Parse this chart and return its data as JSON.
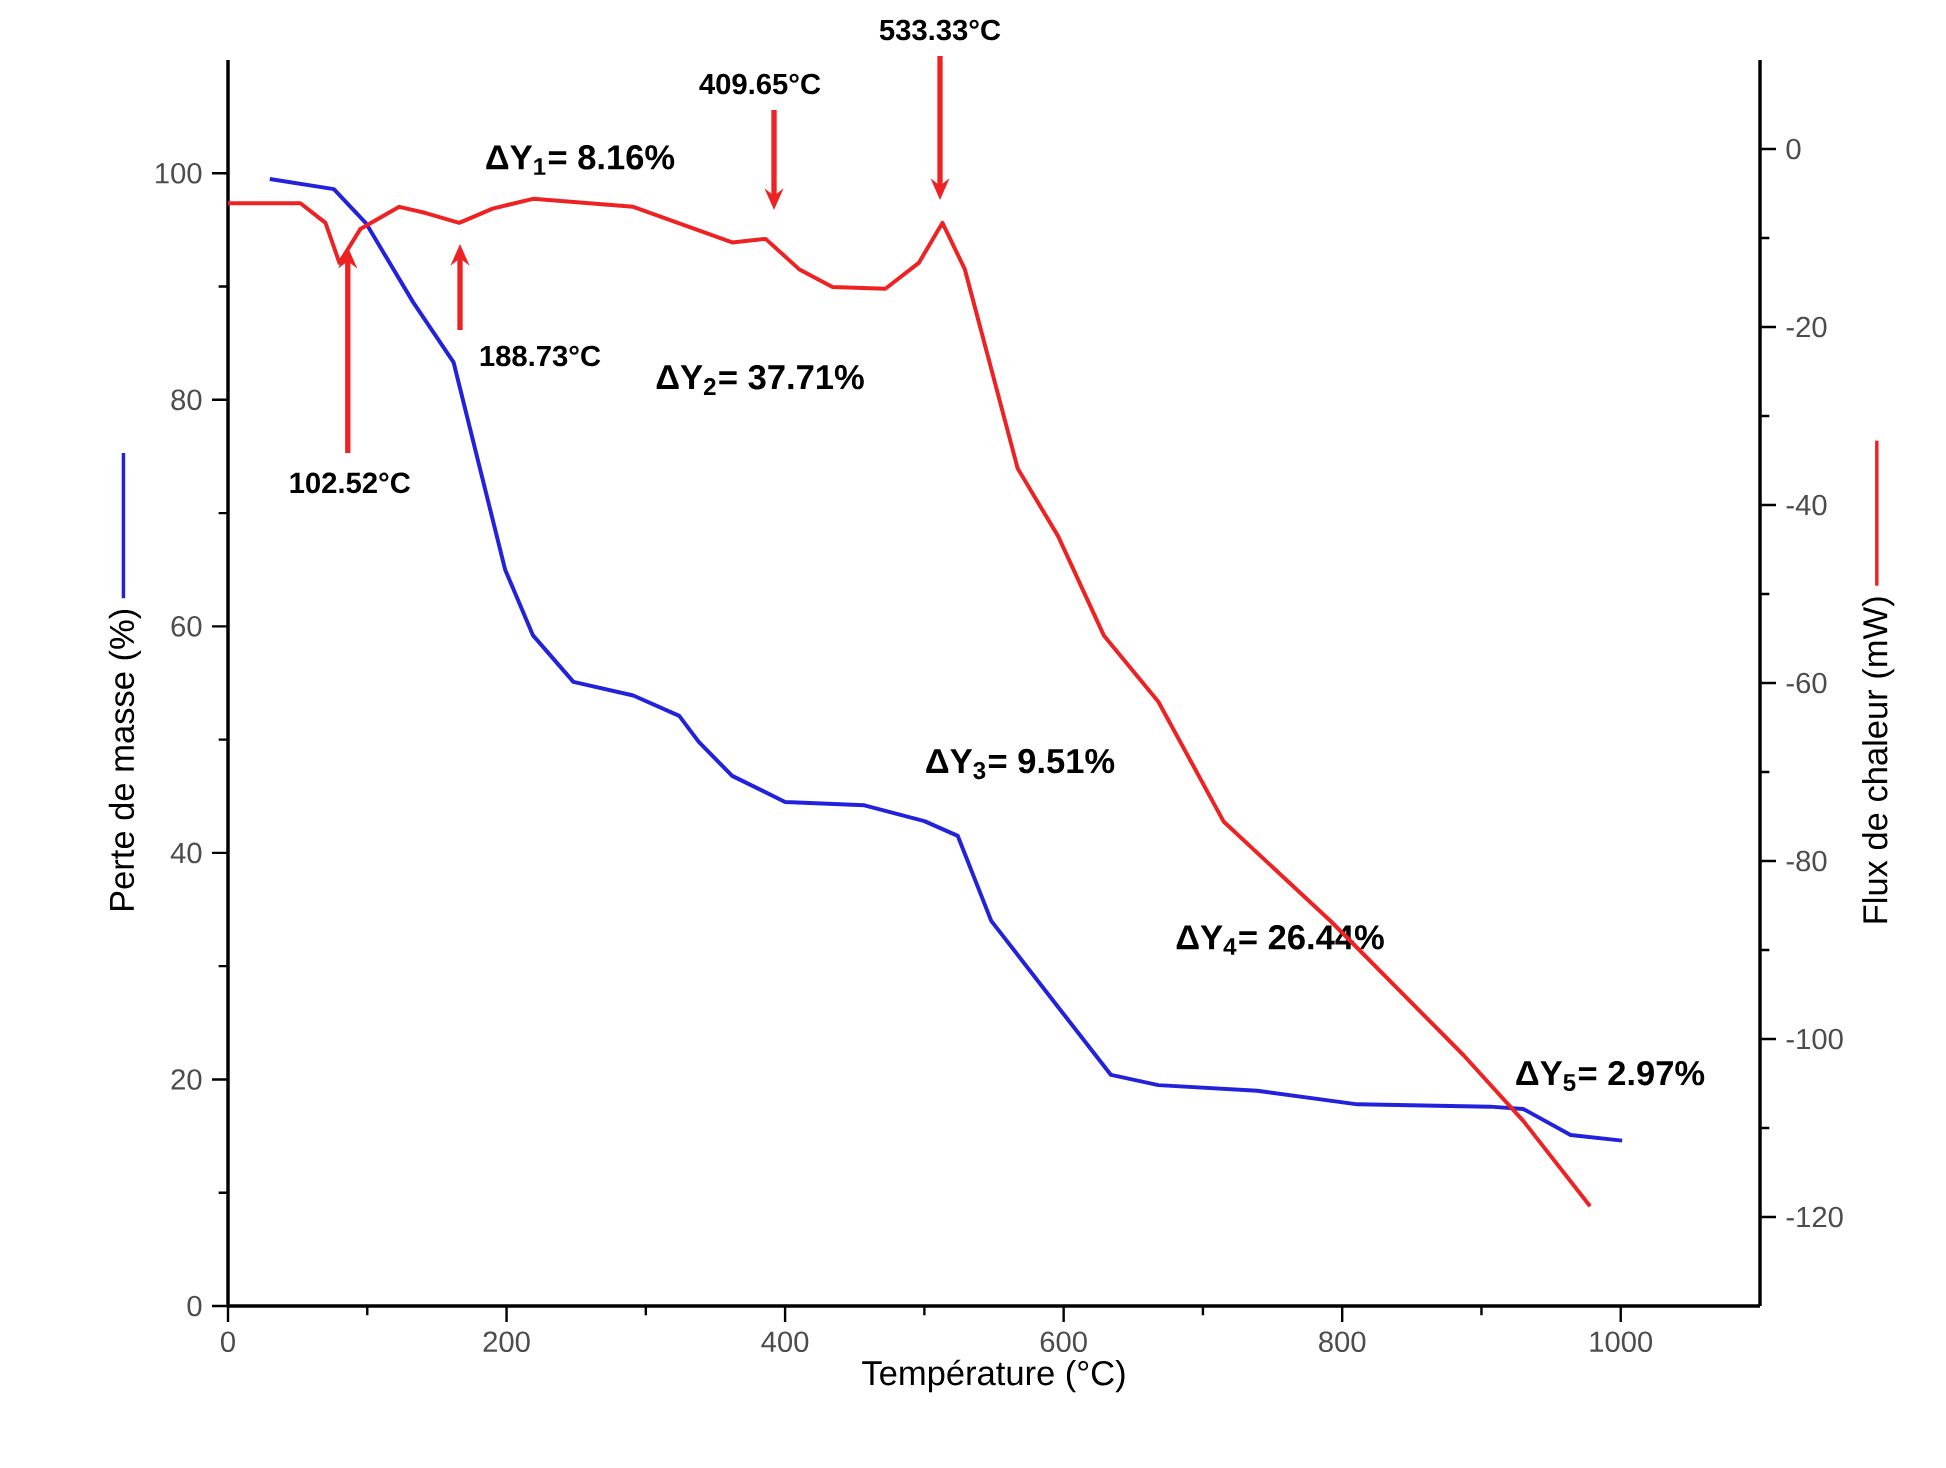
{
  "chart_data": {
    "type": "line",
    "xlabel": "Température (°C)",
    "ylabel": "Perte de masse (%)",
    "y2label": "Flux de chaleur (mW)",
    "xlim": [
      0,
      1100
    ],
    "xticks": [
      0,
      200,
      400,
      600,
      800,
      1000
    ],
    "ylim": [
      0,
      110
    ],
    "yticks": [
      0,
      20,
      40,
      60,
      80,
      100
    ],
    "y2lim": [
      -130,
      10
    ],
    "y2ticks": [
      -120,
      -100,
      -80,
      -60,
      -40,
      -20,
      0
    ],
    "grid": false,
    "marker": "none",
    "line_style": "solid",
    "series": [
      {
        "color": "#2222dd",
        "x": [
          30,
          76,
          99,
          133,
          162,
          181,
          199,
          219,
          248,
          291,
          324,
          338,
          362,
          400,
          457,
          500,
          524,
          548,
          596,
          634,
          668,
          739,
          811,
          906,
          930,
          964,
          1001
        ],
        "values": [
          99.5,
          98.6,
          95.6,
          88.6,
          83.3,
          73.9,
          65,
          59.2,
          55.1,
          53.9,
          52.1,
          49.8,
          46.8,
          44.5,
          44.2,
          42.8,
          41.5,
          34,
          26.4,
          20.4,
          19.5,
          19,
          17.8,
          17.6,
          17.4,
          15.1,
          14.6
        ]
      },
      {
        "color": "#ee2222",
        "axis": "y2",
        "x": [
          0,
          52,
          70,
          80,
          95,
          123,
          142,
          166,
          190,
          219,
          291,
          362,
          386,
          410,
          434,
          472,
          496,
          513,
          529,
          548,
          567,
          596,
          629,
          668,
          715,
          792,
          887,
          930,
          978
        ],
        "values": [
          -6.1,
          -6.1,
          -8.3,
          -12.8,
          -9,
          -6.5,
          -7.2,
          -8.3,
          -6.7,
          -5.6,
          -6.5,
          -10.5,
          -10.1,
          -13.5,
          -15.5,
          -15.7,
          -12.8,
          -8.3,
          -13.5,
          -24.7,
          -35.9,
          -43.5,
          -54.7,
          -62.1,
          -75.6,
          -86.8,
          -101.8,
          -109.2,
          -118.8
        ]
      }
    ],
    "annotations": [
      {
        "text": "102.52°C",
        "x": 86,
        "y": 93.5
      },
      "188.73°C",
      "409.65°C",
      "533.33°C",
      "ΔY$_{1}$= 8.16%",
      "ΔY$_{2}$= 37.71%",
      "ΔY$_{3}$= 9.51%",
      "ΔY$_{4}$= 26.44%",
      "ΔY$_{5}$= 2.97%"
    ]
  }
}
